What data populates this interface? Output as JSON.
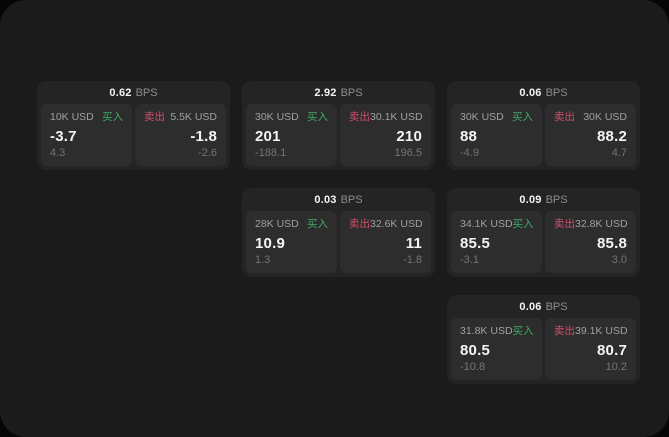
{
  "colors": {
    "window_bg": "#1b1b1c",
    "card_bg": "#242425",
    "panel_bg": "#2d2d2e",
    "value": "#f4f4f4",
    "label": "#a0a0a0",
    "label_dim": "#8d8d8d",
    "sub": "#747474",
    "buy": "#40ab62",
    "sell": "#cf4f6a"
  },
  "labels": {
    "bps_suffix": "BPS",
    "buy": "买入",
    "sell": "卖出"
  },
  "cards": [
    {
      "row": 1,
      "col": 1,
      "bps": "0.62",
      "buy": {
        "size": "10K USD",
        "value": "-3.7",
        "sub": "4.3"
      },
      "sell": {
        "size": "5.5K USD",
        "value": "-1.8",
        "sub": "-2.6"
      }
    },
    {
      "row": 1,
      "col": 2,
      "bps": "2.92",
      "buy": {
        "size": "30K USD",
        "value": "201",
        "sub": "-188.1"
      },
      "sell": {
        "size": "30.1K USD",
        "value": "210",
        "sub": "196.5"
      }
    },
    {
      "row": 1,
      "col": 3,
      "bps": "0.06",
      "buy": {
        "size": "30K USD",
        "value": "88",
        "sub": "-4.9"
      },
      "sell": {
        "size": "30K USD",
        "value": "88.2",
        "sub": "4.7"
      }
    },
    {
      "row": 2,
      "col": 2,
      "bps": "0.03",
      "buy": {
        "size": "28K USD",
        "value": "10.9",
        "sub": "1.3"
      },
      "sell": {
        "size": "32.6K USD",
        "value": "11",
        "sub": "-1.8"
      }
    },
    {
      "row": 2,
      "col": 3,
      "bps": "0.09",
      "buy": {
        "size": "34.1K USD",
        "value": "85.5",
        "sub": "-3.1"
      },
      "sell": {
        "size": "32.8K USD",
        "value": "85.8",
        "sub": "3.0"
      }
    },
    {
      "row": 3,
      "col": 3,
      "bps": "0.06",
      "buy": {
        "size": "31.8K USD",
        "value": "80.5",
        "sub": "-10.8"
      },
      "sell": {
        "size": "39.1K USD",
        "value": "80.7",
        "sub": "10.2"
      }
    }
  ]
}
